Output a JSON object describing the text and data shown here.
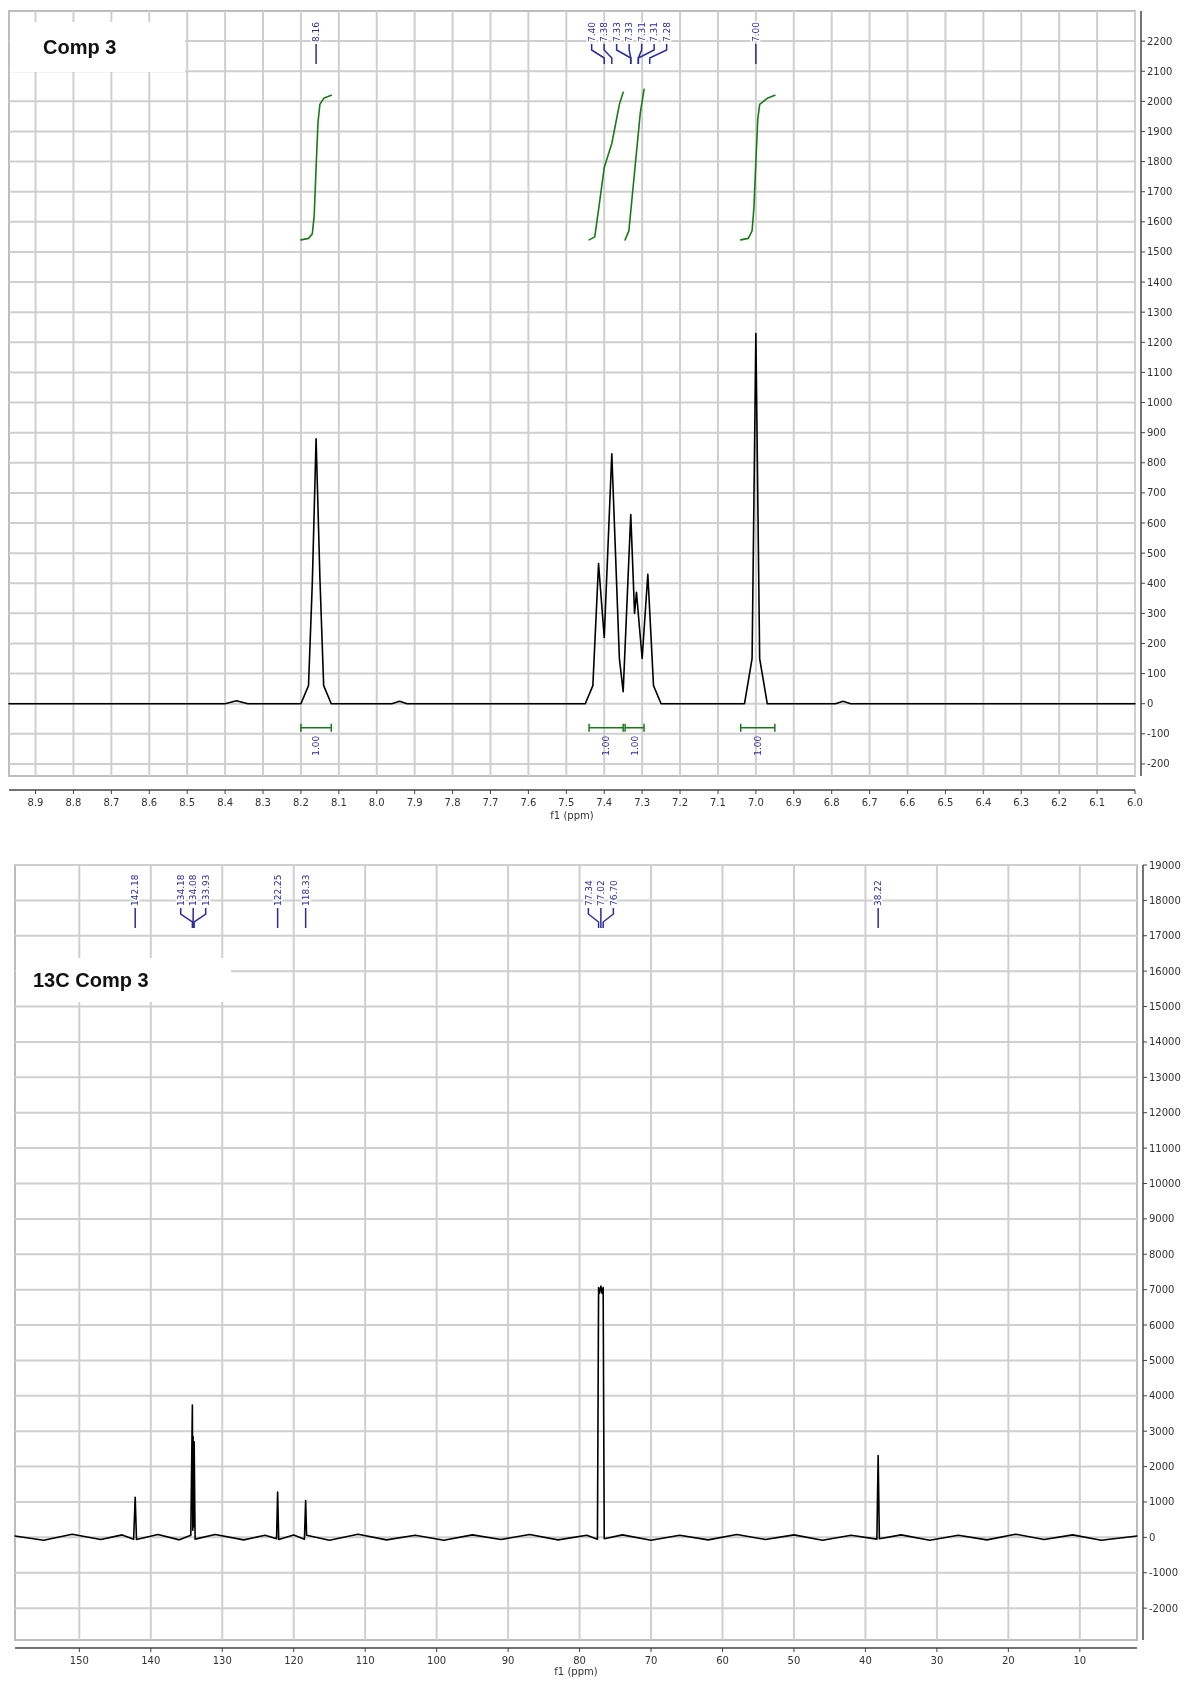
{
  "chart_data": [
    {
      "type": "line",
      "title": "Comp 3",
      "xlabel": "f1 (ppm)",
      "xlim": [
        8.97,
        6.0
      ],
      "xticks": [
        8.9,
        8.8,
        8.7,
        8.6,
        8.5,
        8.4,
        8.3,
        8.2,
        8.1,
        {
          "value": 8,
          "label": "8.0"
        },
        7.9,
        7.8,
        7.7,
        7.6,
        7.5,
        7.4,
        7.3,
        7.2,
        7.1,
        {
          "value": 7,
          "label": "7.0"
        },
        6.9,
        6.8,
        6.7,
        6.6,
        6.5,
        6.4,
        6.3,
        6.2,
        6.1,
        {
          "value": 6,
          "label": "6.0"
        }
      ],
      "ylim": [
        -240,
        2300
      ],
      "yticks": [
        -200,
        -100,
        0,
        100,
        200,
        300,
        400,
        500,
        600,
        700,
        800,
        900,
        1000,
        1100,
        1200,
        1300,
        1400,
        1500,
        1600,
        1700,
        1800,
        1900,
        2000,
        2100,
        2200
      ],
      "grid": true,
      "series": [
        {
          "color": "#000000",
          "x": [
            8.97,
            8.4,
            8.37,
            8.34,
            8.2,
            8.18,
            8.17,
            8.16,
            8.15,
            8.14,
            8.12,
            7.96,
            7.94,
            7.92,
            7.45,
            7.43,
            7.415,
            7.4,
            7.38,
            7.36,
            7.35,
            7.33,
            7.32,
            7.315,
            7.3,
            7.285,
            7.27,
            7.25,
            7.03,
            7.01,
            7.0,
            6.99,
            6.97,
            6.79,
            6.77,
            6.75,
            6.0
          ],
          "values": [
            0,
            0,
            10,
            0,
            0,
            60,
            400,
            880,
            420,
            60,
            0,
            0,
            8,
            0,
            0,
            60,
            465,
            220,
            830,
            150,
            40,
            628,
            300,
            370,
            150,
            430,
            60,
            0,
            0,
            150,
            1229,
            150,
            0,
            0,
            8,
            0,
            0
          ]
        },
        {
          "color": "#1a7a1a",
          "x": [
            8.2,
            8.18,
            8.17,
            8.165,
            8.16,
            8.155,
            8.15,
            8.14,
            8.12
          ],
          "values": [
            1540,
            1545,
            1560,
            1620,
            1780,
            1930,
            1990,
            2010,
            2020
          ]
        },
        {
          "color": "#1a7a1a",
          "x": [
            7.44,
            7.425,
            7.415,
            7.4,
            7.38,
            7.36,
            7.35
          ],
          "values": [
            1540,
            1550,
            1640,
            1780,
            1860,
            1990,
            2030
          ]
        },
        {
          "color": "#1a7a1a",
          "x": [
            7.345,
            7.335,
            7.325,
            7.315,
            7.305,
            7.295
          ],
          "values": [
            1540,
            1570,
            1700,
            1830,
            1960,
            2040
          ]
        },
        {
          "color": "#1a7a1a",
          "x": [
            7.04,
            7.02,
            7.01,
            7.005,
            7.0,
            6.995,
            6.99,
            6.97,
            6.95
          ],
          "values": [
            1540,
            1545,
            1570,
            1650,
            1800,
            1940,
            1990,
            2010,
            2020
          ]
        }
      ],
      "annotations": [
        "8.16",
        "7.40",
        "7.38",
        "7.33",
        "7.33",
        "7.31",
        "7.31",
        "7.28",
        "7.00",
        "1.00",
        "1.00",
        "1.00",
        "1.00"
      ]
    },
    {
      "type": "line",
      "title": "13C Comp 3",
      "xlabel": "f1 (ppm)",
      "xlim": [
        159,
        2
      ],
      "xticks": [
        150,
        140,
        130,
        120,
        110,
        100,
        90,
        80,
        70,
        60,
        50,
        40,
        30,
        20,
        10
      ],
      "ylim": [
        -2900,
        19000
      ],
      "yticks": [
        -2000,
        -1000,
        0,
        1000,
        2000,
        3000,
        4000,
        5000,
        6000,
        7000,
        8000,
        9000,
        10000,
        11000,
        12000,
        13000,
        14000,
        15000,
        16000,
        17000,
        18000,
        19000
      ],
      "grid": true,
      "series": [
        {
          "color": "#000000",
          "x": [
            159,
            155,
            151,
            147,
            144,
            142.4,
            142.18,
            142.0,
            139,
            136,
            134.4,
            134.18,
            134.12,
            134.08,
            134.0,
            133.93,
            133.8,
            131,
            127,
            124,
            122.4,
            122.25,
            122.1,
            120,
            118.5,
            118.33,
            118.2,
            115,
            111,
            107,
            103,
            99,
            95,
            91,
            87,
            83,
            79,
            77.5,
            77.34,
            77.2,
            77.02,
            76.86,
            76.7,
            76.55,
            74,
            70,
            66,
            62,
            58,
            54,
            50,
            46,
            42,
            38.4,
            38.22,
            38.05,
            35,
            31,
            27,
            23,
            19,
            15,
            11,
            7,
            2
          ],
          "values": [
            40,
            -80,
            90,
            -60,
            70,
            -50,
            1130,
            -60,
            80,
            -70,
            60,
            3740,
            200,
            2850,
            300,
            2700,
            -50,
            80,
            -70,
            60,
            -40,
            1280,
            -60,
            70,
            -50,
            1040,
            60,
            -80,
            90,
            -70,
            60,
            -80,
            70,
            -60,
            80,
            -70,
            60,
            -50,
            7060,
            6900,
            7100,
            6900,
            7060,
            -40,
            70,
            -80,
            60,
            -70,
            80,
            -60,
            70,
            -80,
            60,
            -50,
            2310,
            -40,
            70,
            -80,
            60,
            -70,
            90,
            -60,
            70,
            -80,
            40
          ]
        }
      ],
      "annotations": [
        "142.18",
        "134.18",
        "134.08",
        "133.93",
        "122.25",
        "118.33",
        "77.34",
        "77.02",
        "76.70",
        "38.22"
      ]
    }
  ]
}
